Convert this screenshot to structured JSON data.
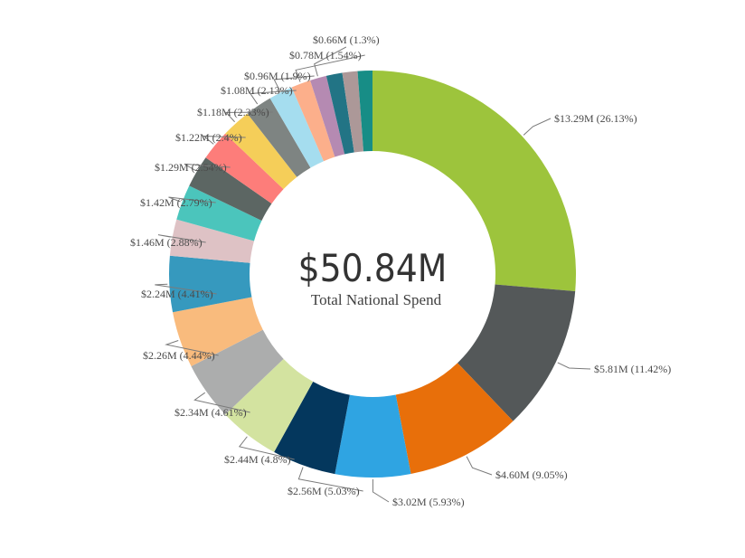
{
  "chart_data": {
    "type": "pie",
    "variant": "donut",
    "title": "",
    "center_value": "$50.84M",
    "center_caption": "Total National Spend",
    "total_musd": 50.84,
    "slices": [
      {
        "value": 13.29,
        "percent": 26.13,
        "label": "$13.29M (26.13%)",
        "color": "#9DC43C"
      },
      {
        "value": 5.81,
        "percent": 11.42,
        "label": "$5.81M (11.42%)",
        "color": "#545859"
      },
      {
        "value": 4.6,
        "percent": 9.05,
        "label": "$4.60M (9.05%)",
        "color": "#E86F0A"
      },
      {
        "value": 3.02,
        "percent": 5.93,
        "label": "$3.02M (5.93%)",
        "color": "#2FA4E2"
      },
      {
        "value": 2.56,
        "percent": 5.03,
        "label": "$2.56M (5.03%)",
        "color": "#04375D"
      },
      {
        "value": 2.44,
        "percent": 4.8,
        "label": "$2.44M (4.8%)",
        "color": "#D3E3A0"
      },
      {
        "value": 2.34,
        "percent": 4.61,
        "label": "$2.34M (4.61%)",
        "color": "#ACADAD"
      },
      {
        "value": 2.26,
        "percent": 4.44,
        "label": "$2.26M (4.44%)",
        "color": "#F9BB7D"
      },
      {
        "value": 2.24,
        "percent": 4.41,
        "label": "$2.24M (4.41%)",
        "color": "#3699BE"
      },
      {
        "value": 1.46,
        "percent": 2.88,
        "label": "$1.46M (2.88%)",
        "color": "#DEC2C5"
      },
      {
        "value": 1.42,
        "percent": 2.79,
        "label": "$1.42M (2.79%)",
        "color": "#4BC5BC"
      },
      {
        "value": 1.29,
        "percent": 2.54,
        "label": "$1.29M (2.54%)",
        "color": "#5C6663"
      },
      {
        "value": 1.22,
        "percent": 2.4,
        "label": "$1.22M (2.4%)",
        "color": "#FD7D7A"
      },
      {
        "value": 1.18,
        "percent": 2.33,
        "label": "$1.18M (2.33%)",
        "color": "#F5CE59"
      },
      {
        "value": 1.08,
        "percent": 2.13,
        "label": "$1.08M (2.13%)",
        "color": "#7E8482"
      },
      {
        "value": 0.96,
        "percent": 1.9,
        "label": "$0.96M (1.9%)",
        "color": "#A5DDEF"
      },
      {
        "value": 0.78,
        "percent": 1.54,
        "label": "$0.78M (1.54%)",
        "color": "#FCAF8B"
      },
      {
        "value": 0.66,
        "percent": 1.3,
        "label": "$0.66M (1.3%)",
        "color": "#B58AB2"
      },
      {
        "value": 0.64,
        "percent": 1.25,
        "label": "",
        "color": "#227485"
      },
      {
        "value": 0.61,
        "percent": 1.2,
        "label": "",
        "color": "#AC9898"
      },
      {
        "value": 0.59,
        "percent": 1.16,
        "label": "",
        "color": "#178D86"
      }
    ]
  }
}
